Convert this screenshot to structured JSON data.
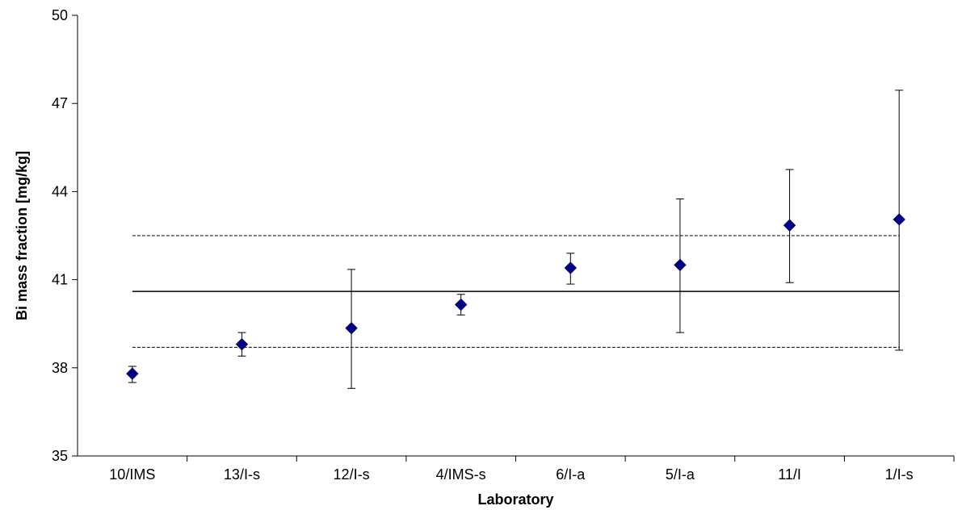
{
  "chart_data": {
    "type": "scatter",
    "title": "",
    "xlabel": "Laboratory",
    "ylabel": "Bi mass fraction  [mg/kg]",
    "ylim": [
      35,
      50
    ],
    "yticks": [
      "35",
      "38",
      "41",
      "44",
      "47",
      "50"
    ],
    "grid": false,
    "legend": "none",
    "categories": [
      "10/IMS",
      "13/I-s",
      "12/I-s",
      "4/IMS-s",
      "6/I-a",
      "5/I-a",
      "11/I",
      "1/I-s"
    ],
    "series": [
      {
        "values": [
          37.8,
          38.8,
          39.35,
          40.15,
          41.4,
          41.5,
          42.85,
          43.05
        ],
        "error_low": [
          37.5,
          38.4,
          37.3,
          39.8,
          40.85,
          39.2,
          40.9,
          38.6
        ],
        "error_high": [
          38.05,
          39.2,
          41.35,
          40.5,
          41.9,
          43.75,
          44.75,
          47.45
        ],
        "marker": "diamond",
        "color": "#000080"
      }
    ],
    "reference_lines": [
      {
        "style": "solid",
        "value": 40.6
      },
      {
        "style": "dashed",
        "value": 42.5
      },
      {
        "style": "dashed",
        "value": 38.7
      }
    ]
  }
}
